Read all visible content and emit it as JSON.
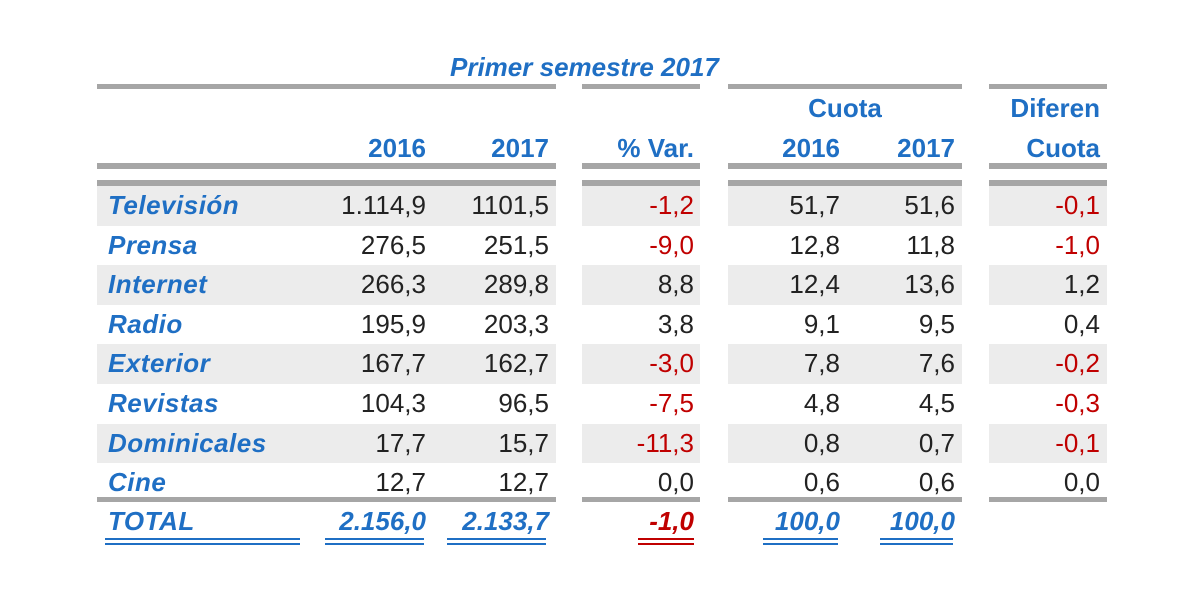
{
  "chart_data": {
    "type": "table",
    "title": "Primer semestre 2017",
    "header_groups": {
      "cuota": "Cuota",
      "diferen": "Diferen"
    },
    "columns": [
      "2016",
      "2017",
      "% Var.",
      "2016",
      "2017",
      "Cuota"
    ],
    "rows": [
      {
        "label": "Televisión",
        "values": [
          "1.114,9",
          "1101,5",
          "-1,2",
          "51,7",
          "51,6",
          "-0,1"
        ]
      },
      {
        "label": "Prensa",
        "values": [
          "276,5",
          "251,5",
          "-9,0",
          "12,8",
          "11,8",
          "-1,0"
        ]
      },
      {
        "label": "Internet",
        "values": [
          "266,3",
          "289,8",
          "8,8",
          "12,4",
          "13,6",
          "1,2"
        ]
      },
      {
        "label": "Radio",
        "values": [
          "195,9",
          "203,3",
          "3,8",
          "9,1",
          "9,5",
          "0,4"
        ]
      },
      {
        "label": "Exterior",
        "values": [
          "167,7",
          "162,7",
          "-3,0",
          "7,8",
          "7,6",
          "-0,2"
        ]
      },
      {
        "label": "Revistas",
        "values": [
          "104,3",
          "96,5",
          "-7,5",
          "4,8",
          "4,5",
          "-0,3"
        ]
      },
      {
        "label": "Dominicales",
        "values": [
          "17,7",
          "15,7",
          "-11,3",
          "0,8",
          "0,7",
          "-0,1"
        ]
      },
      {
        "label": "Cine",
        "values": [
          "12,7",
          "12,7",
          "0,0",
          "0,6",
          "0,6",
          "0,0"
        ]
      }
    ],
    "total": {
      "label": "TOTAL",
      "values": [
        "2.156,0",
        "2.133,7",
        "-1,0",
        "100,0",
        "100,0"
      ]
    },
    "colors": {
      "label": "#1f6fc4",
      "negative": "#c00000",
      "rule": "#a6a6a6",
      "shade": "#ececec"
    }
  }
}
